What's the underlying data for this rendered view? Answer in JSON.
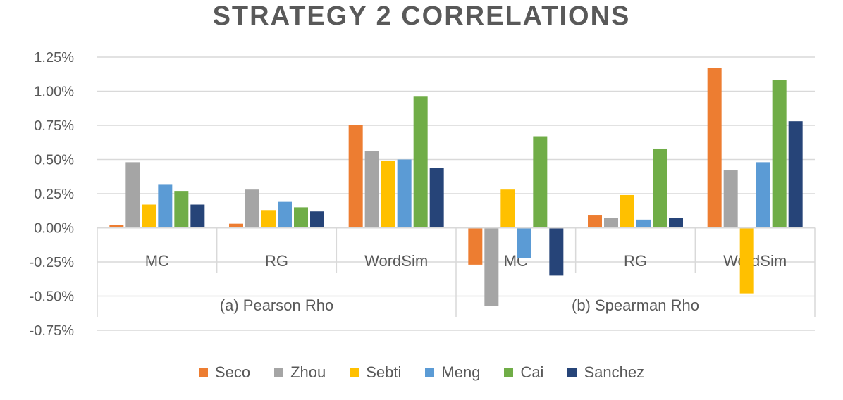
{
  "chart_data": {
    "type": "bar",
    "title": "STRATEGY 2 CORRELATIONS",
    "groups": [
      {
        "label": "(a) Pearson Rho",
        "categories": [
          "MC",
          "RG",
          "WordSim"
        ]
      },
      {
        "label": "(b) Spearman Rho",
        "categories": [
          "MC",
          "RG",
          "WordSim"
        ]
      }
    ],
    "categories": [
      "MC",
      "RG",
      "WordSim",
      "MC",
      "RG",
      "WordSim"
    ],
    "series": [
      {
        "name": "Seco",
        "color": "#ED7D31",
        "values": [
          0.02,
          0.03,
          0.75,
          -0.27,
          0.09,
          1.17
        ]
      },
      {
        "name": "Zhou",
        "color": "#A5A5A5",
        "values": [
          0.48,
          0.28,
          0.56,
          -0.57,
          0.07,
          0.42
        ]
      },
      {
        "name": "Sebti",
        "color": "#FFC000",
        "values": [
          0.17,
          0.13,
          0.49,
          0.28,
          0.24,
          -0.48
        ]
      },
      {
        "name": "Meng",
        "color": "#5B9BD5",
        "values": [
          0.32,
          0.19,
          0.5,
          -0.22,
          0.06,
          0.48
        ]
      },
      {
        "name": "Cai",
        "color": "#70AD47",
        "values": [
          0.27,
          0.15,
          0.96,
          0.67,
          0.58,
          1.08
        ]
      },
      {
        "name": "Sanchez",
        "color": "#264478",
        "values": [
          0.17,
          0.12,
          0.44,
          -0.35,
          0.07,
          0.78
        ]
      }
    ],
    "ylim": [
      -0.75,
      1.25
    ],
    "yticks": [
      "1.25%",
      "1.00%",
      "0.75%",
      "0.50%",
      "0.25%",
      "0.00%",
      "-0.25%",
      "-0.50%",
      "-0.75%"
    ],
    "ytick_values": [
      1.25,
      1.0,
      0.75,
      0.5,
      0.25,
      0.0,
      -0.25,
      -0.5,
      -0.75
    ],
    "grid": true,
    "legend_position": "bottom"
  }
}
